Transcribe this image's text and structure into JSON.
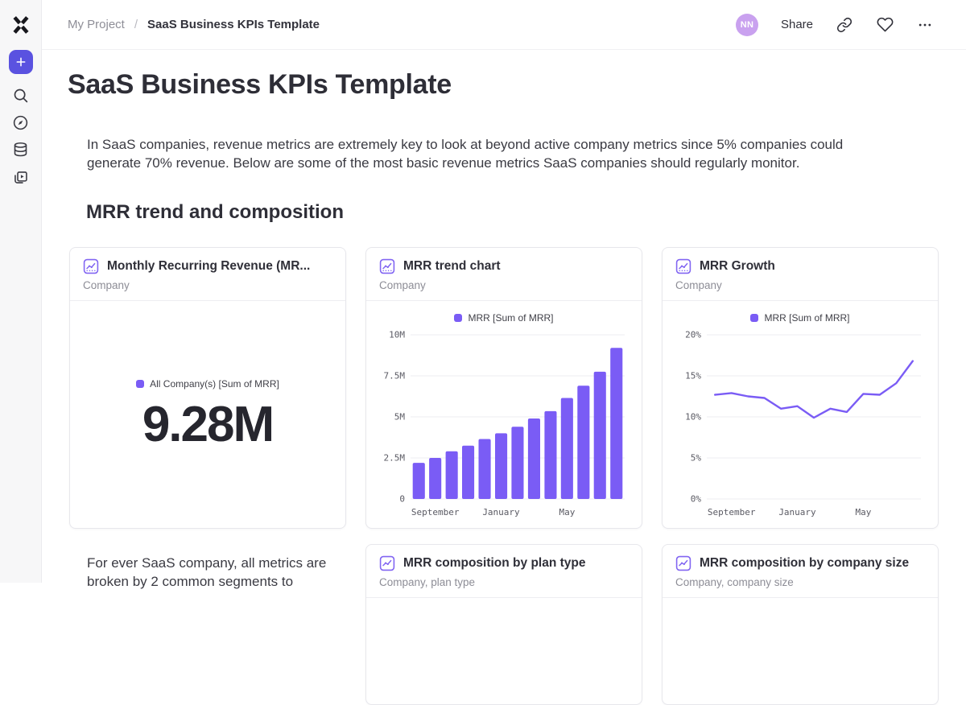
{
  "topbar": {
    "breadcrumb": {
      "project": "My Project",
      "separator": "/",
      "current": "SaaS Business KPIs Template"
    },
    "avatar_initials": "NN",
    "share_label": "Share",
    "icons": [
      "link-icon",
      "favorite-heart-icon",
      "more-ellipsis-icon"
    ]
  },
  "sidebar": {
    "icons": [
      "plus-new-icon",
      "search-icon",
      "explore-compass-icon",
      "data-database-icon",
      "reports-icon"
    ]
  },
  "page": {
    "title": "SaaS Business KPIs Template",
    "intro": "In SaaS companies, revenue metrics are extremely key to look at beyond active company metrics since 5% companies could generate 70% revenue. Below are some of the most basic revenue metrics SaaS companies should regularly monitor.",
    "section_title": "MRR trend and composition",
    "footer_text": "For ever SaaS company, all metrics are broken by 2 common segments to"
  },
  "cards": {
    "kpi": {
      "title": "Monthly Recurring Revenue (MR...",
      "subtitle": "Company",
      "legend": "All Company(s) [Sum of MRR]",
      "value": "9.28M"
    },
    "comp_plan": {
      "title": "MRR composition by plan type",
      "subtitle": "Company, plan type"
    },
    "comp_size": {
      "title": "MRR composition by company size",
      "subtitle": "Company, company size"
    }
  },
  "chart_data": [
    {
      "id": "mrr-trend",
      "type": "bar",
      "title": "MRR trend chart",
      "subtitle": "Company",
      "legend": [
        "MRR [Sum of MRR]"
      ],
      "legend_position": "top",
      "x_count": 13,
      "values": [
        2.2,
        2.5,
        2.9,
        3.25,
        3.65,
        4.0,
        4.4,
        4.9,
        5.35,
        6.15,
        6.9,
        7.75,
        9.2
      ],
      "unit": "M",
      "ylim": [
        0,
        10
      ],
      "y_tick_values": [
        0,
        2.5,
        5,
        7.5,
        10
      ],
      "y_ticks": [
        "0",
        "2.5M",
        "5M",
        "7.5M",
        "10M"
      ],
      "x_tick_labels": [
        {
          "index": 1,
          "label": "September"
        },
        {
          "index": 5,
          "label": "January"
        },
        {
          "index": 9,
          "label": "May"
        }
      ],
      "grid": true,
      "color": "#7a5cf5"
    },
    {
      "id": "mrr-growth",
      "type": "line",
      "title": "MRR Growth",
      "subtitle": "Company",
      "legend": [
        "MRR [Sum of MRR]"
      ],
      "legend_position": "top",
      "x_count": 13,
      "values": [
        12.7,
        12.9,
        12.5,
        12.3,
        11.0,
        11.3,
        9.9,
        11.0,
        10.6,
        12.8,
        12.7,
        14.1,
        16.8
      ],
      "unit": "%",
      "ylim": [
        0,
        20
      ],
      "y_tick_values": [
        0,
        5,
        10,
        15,
        20
      ],
      "y_ticks": [
        "0%",
        "5%",
        "10%",
        "15%",
        "20%"
      ],
      "x_tick_labels": [
        {
          "index": 1,
          "label": "September"
        },
        {
          "index": 5,
          "label": "January"
        },
        {
          "index": 9,
          "label": "May"
        }
      ],
      "grid": true,
      "color": "#7a5cf5"
    }
  ],
  "colors": {
    "accent_purple": "#7a5cf5",
    "sidebar_button": "#5a52e0",
    "avatar_bg": "#c9a1ef",
    "text_dark": "#2e2e37",
    "text_muted": "#8d8d96"
  }
}
